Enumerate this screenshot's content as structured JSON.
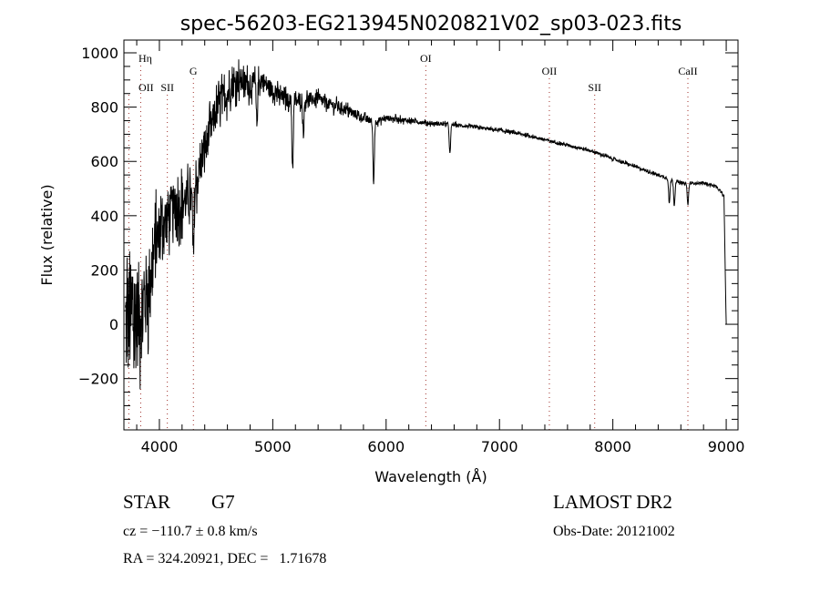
{
  "chart_data": {
    "type": "line",
    "title": "spec-56203-EG213945N020821V02_sp03-023.fits",
    "xlabel": "Wavelength (Å)",
    "ylabel": "Flux (relative)",
    "xlim": [
      3687,
      9104
    ],
    "ylim": [
      -389,
      1047
    ],
    "xticks": [
      4000,
      5000,
      6000,
      7000,
      8000,
      9000
    ],
    "xtick_labels": [
      "4000",
      "5000",
      "6000",
      "7000",
      "8000",
      "9000"
    ],
    "yticks": [
      -200,
      0,
      200,
      400,
      600,
      800,
      1000
    ],
    "ytick_labels": [
      "-200",
      "0",
      "200",
      "400",
      "600",
      "800",
      "1000"
    ],
    "grid": false,
    "series": [
      {
        "name": "spectrum",
        "continuum_x": [
          3700,
          3750,
          3800,
          3850,
          3900,
          3950,
          4000,
          4050,
          4100,
          4150,
          4200,
          4250,
          4300,
          4350,
          4400,
          4450,
          4500,
          4550,
          4600,
          4650,
          4700,
          4750,
          4800,
          4850,
          4900,
          4950,
          5000,
          5100,
          5200,
          5300,
          5400,
          5500,
          5600,
          5700,
          5800,
          5900,
          6000,
          6200,
          6400,
          6600,
          6800,
          7000,
          7200,
          7400,
          7600,
          7800,
          8000,
          8200,
          8400,
          8600,
          8800,
          8900,
          8950,
          8980,
          9000
        ],
        "continuum_y": [
          0,
          20,
          30,
          60,
          120,
          250,
          350,
          380,
          420,
          430,
          450,
          460,
          470,
          560,
          650,
          720,
          780,
          830,
          850,
          880,
          900,
          890,
          880,
          890,
          900,
          880,
          860,
          830,
          820,
          830,
          830,
          810,
          800,
          780,
          760,
          745,
          760,
          750,
          740,
          735,
          725,
          715,
          700,
          680,
          660,
          640,
          610,
          580,
          550,
          520,
          520,
          510,
          490,
          470,
          0
        ],
        "noise_amplitude": [
          320,
          300,
          280,
          260,
          220,
          180,
          150,
          140,
          130,
          120,
          120,
          110,
          110,
          100,
          100,
          90,
          90,
          80,
          80,
          70,
          70,
          65,
          60,
          55,
          55,
          50,
          45,
          40,
          35,
          35,
          30,
          30,
          28,
          24,
          20,
          18,
          15,
          12,
          10,
          9,
          8,
          8,
          7,
          7,
          7,
          7,
          7,
          7,
          7,
          6,
          6,
          6,
          6,
          6,
          0
        ],
        "absorption_lines": [
          {
            "x": 4300,
            "depth": 230
          },
          {
            "x": 4860,
            "depth": 150
          },
          {
            "x": 5175,
            "depth": 250
          },
          {
            "x": 5270,
            "depth": 120
          },
          {
            "x": 5890,
            "depth": 230
          },
          {
            "x": 6563,
            "depth": 110
          },
          {
            "x": 8498,
            "depth": 90
          },
          {
            "x": 8542,
            "depth": 90
          },
          {
            "x": 8662,
            "depth": 80
          }
        ]
      }
    ],
    "line_markers": [
      {
        "label": "OII",
        "x": 3730,
        "row": 3
      },
      {
        "label": "Hη",
        "x": 3835,
        "row": 1
      },
      {
        "label": "SII",
        "x": 4070,
        "row": 3
      },
      {
        "label": "G",
        "x": 4300,
        "row": 2
      },
      {
        "label": "OI",
        "x": 6350,
        "row": 1
      },
      {
        "label": "OII",
        "x": 7440,
        "row": 2
      },
      {
        "label": "SII",
        "x": 7840,
        "row": 3
      },
      {
        "label": "CaII",
        "x": 8662,
        "row": 2
      }
    ],
    "colors": {
      "line": "#000000",
      "marker": "#a0302a"
    }
  },
  "info": {
    "class": "STAR",
    "subclass": "G7",
    "cz": "cz = −110.7 ± 0.8 km/s",
    "coords": "RA = 324.20921, DEC =   1.71678",
    "survey": "LAMOST DR2",
    "obs_date": "Obs-Date: 20121002"
  }
}
